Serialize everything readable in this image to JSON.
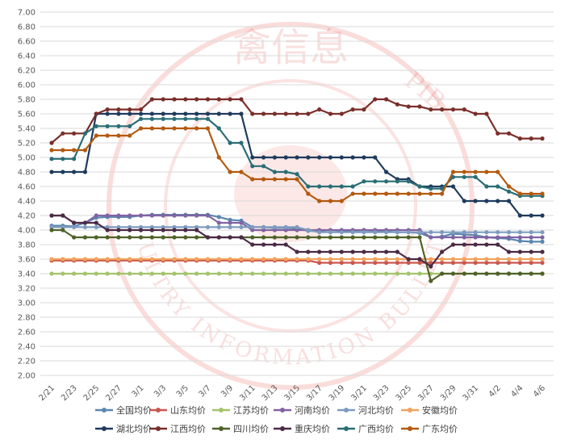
{
  "chart_data": {
    "type": "line",
    "title": "",
    "xlabel": "",
    "ylabel": "",
    "ylim": [
      2.0,
      7.0
    ],
    "ytick_labels": [
      "2.00",
      "2.20",
      "2.40",
      "2.60",
      "2.80",
      "3.00",
      "3.20",
      "3.40",
      "3.60",
      "3.80",
      "4.00",
      "4.20",
      "4.40",
      "4.60",
      "4.80",
      "5.00",
      "5.20",
      "5.40",
      "5.60",
      "5.80",
      "6.00",
      "6.20",
      "6.40",
      "6.60",
      "6.80",
      "7.00"
    ],
    "x": [
      "2/21",
      "2/22",
      "2/23",
      "2/24",
      "2/25",
      "2/26",
      "2/27",
      "2/28",
      "3/1",
      "3/2",
      "3/3",
      "3/4",
      "3/5",
      "3/6",
      "3/7",
      "3/8",
      "3/9",
      "3/10",
      "3/11",
      "3/12",
      "3/13",
      "3/14",
      "3/15",
      "3/16",
      "3/17",
      "3/18",
      "3/19",
      "3/20",
      "3/21",
      "3/22",
      "3/23",
      "3/24",
      "3/25",
      "3/26",
      "3/27",
      "3/28",
      "3/29",
      "3/30",
      "3/31",
      "4/1",
      "4/2",
      "4/3",
      "4/4",
      "4/5",
      "4/6"
    ],
    "xtick_labels": [
      "2/21",
      "2/23",
      "2/25",
      "2/27",
      "3/1",
      "3/3",
      "3/5",
      "3/7",
      "3/9",
      "3/11",
      "3/13",
      "3/15",
      "3/17",
      "3/19",
      "3/21",
      "3/23",
      "3/25",
      "3/27",
      "3/29",
      "3/31",
      "4/2",
      "4/4",
      "4/6"
    ],
    "grid": true,
    "legend_position": "bottom",
    "watermark": {
      "top_text": "禽信息",
      "bottom_text": "POULTRY INFORMATION BULLETIN",
      "side_text": "PIB"
    },
    "series": [
      {
        "name": "全国均价",
        "color": "#5b87b0",
        "values": [
          4.06,
          4.06,
          4.05,
          4.1,
          4.17,
          4.18,
          4.18,
          4.18,
          4.2,
          4.21,
          4.21,
          4.21,
          4.21,
          4.21,
          4.21,
          4.18,
          4.14,
          4.13,
          4.04,
          4.04,
          4.03,
          4.03,
          4.02,
          3.99,
          3.98,
          3.97,
          3.98,
          3.99,
          4.0,
          3.99,
          3.98,
          3.97,
          3.97,
          3.96,
          3.9,
          3.91,
          3.95,
          3.94,
          3.93,
          3.9,
          3.89,
          3.88,
          3.85,
          3.84,
          3.84
        ]
      },
      {
        "name": "山东均价",
        "color": "#c9574e",
        "values": [
          3.58,
          3.58,
          3.58,
          3.58,
          3.58,
          3.58,
          3.58,
          3.58,
          3.58,
          3.58,
          3.58,
          3.58,
          3.58,
          3.58,
          3.58,
          3.58,
          3.58,
          3.58,
          3.58,
          3.58,
          3.58,
          3.58,
          3.58,
          3.58,
          3.55,
          3.55,
          3.55,
          3.55,
          3.55,
          3.55,
          3.55,
          3.55,
          3.55,
          3.55,
          3.55,
          3.55,
          3.55,
          3.55,
          3.55,
          3.55,
          3.55,
          3.55,
          3.55,
          3.55,
          3.55
        ]
      },
      {
        "name": "江苏均价",
        "color": "#a3c46c",
        "values": [
          3.4,
          3.4,
          3.4,
          3.4,
          3.4,
          3.4,
          3.4,
          3.4,
          3.4,
          3.4,
          3.4,
          3.4,
          3.4,
          3.4,
          3.4,
          3.4,
          3.4,
          3.4,
          3.4,
          3.4,
          3.4,
          3.4,
          3.4,
          3.4,
          3.4,
          3.4,
          3.4,
          3.4,
          3.4,
          3.4,
          3.4,
          3.4,
          3.4,
          3.4,
          3.4,
          3.4,
          3.4,
          3.4,
          3.4,
          3.4,
          3.4,
          3.4,
          3.4,
          3.4,
          3.4
        ]
      },
      {
        "name": "河南均价",
        "color": "#8064a2",
        "values": [
          4.2,
          4.2,
          4.1,
          4.1,
          4.2,
          4.2,
          4.2,
          4.2,
          4.2,
          4.2,
          4.2,
          4.2,
          4.2,
          4.2,
          4.2,
          4.1,
          4.1,
          4.1,
          4.0,
          4.0,
          4.0,
          4.0,
          4.0,
          4.0,
          4.0,
          4.0,
          4.0,
          4.0,
          4.0,
          4.0,
          4.0,
          4.0,
          4.0,
          4.0,
          3.9,
          3.9,
          3.9,
          3.9,
          3.9,
          3.9,
          3.9,
          3.9,
          3.9,
          3.9,
          3.9
        ]
      },
      {
        "name": "河北均价",
        "color": "#7f9cbf",
        "values": [
          4.04,
          4.04,
          4.04,
          4.04,
          4.04,
          4.04,
          4.04,
          4.04,
          4.04,
          4.04,
          4.04,
          4.04,
          4.04,
          4.04,
          4.04,
          4.04,
          4.04,
          4.04,
          4.04,
          4.04,
          4.04,
          4.04,
          4.04,
          4.0,
          3.97,
          3.97,
          3.97,
          3.97,
          3.97,
          3.97,
          3.97,
          3.97,
          3.97,
          3.97,
          3.97,
          3.97,
          3.97,
          3.97,
          3.97,
          3.97,
          3.97,
          3.97,
          3.97,
          3.97,
          3.97
        ]
      },
      {
        "name": "安徽均价",
        "color": "#f0a35e",
        "values": [
          3.6,
          3.6,
          3.6,
          3.6,
          3.6,
          3.6,
          3.6,
          3.6,
          3.6,
          3.6,
          3.6,
          3.6,
          3.6,
          3.6,
          3.6,
          3.6,
          3.6,
          3.6,
          3.6,
          3.6,
          3.6,
          3.6,
          3.6,
          3.6,
          3.6,
          3.6,
          3.6,
          3.6,
          3.6,
          3.6,
          3.6,
          3.6,
          3.6,
          3.6,
          3.6,
          3.6,
          3.6,
          3.6,
          3.6,
          3.6,
          3.6,
          3.6,
          3.6,
          3.6,
          3.6
        ]
      },
      {
        "name": "湖北均价",
        "color": "#1f3b5c",
        "values": [
          4.8,
          4.8,
          4.8,
          4.8,
          5.6,
          5.6,
          5.6,
          5.6,
          5.6,
          5.6,
          5.6,
          5.6,
          5.6,
          5.6,
          5.6,
          5.6,
          5.6,
          5.6,
          5.0,
          5.0,
          5.0,
          5.0,
          5.0,
          5.0,
          5.0,
          5.0,
          5.0,
          5.0,
          5.0,
          5.0,
          4.8,
          4.7,
          4.7,
          4.6,
          4.6,
          4.6,
          4.6,
          4.4,
          4.4,
          4.4,
          4.4,
          4.4,
          4.2,
          4.2,
          4.2
        ]
      },
      {
        "name": "江西均价",
        "color": "#7a2e2a",
        "values": [
          5.2,
          5.33,
          5.33,
          5.33,
          5.6,
          5.66,
          5.66,
          5.66,
          5.66,
          5.8,
          5.8,
          5.8,
          5.8,
          5.8,
          5.8,
          5.8,
          5.8,
          5.8,
          5.6,
          5.6,
          5.6,
          5.6,
          5.6,
          5.6,
          5.66,
          5.6,
          5.6,
          5.66,
          5.66,
          5.8,
          5.8,
          5.73,
          5.7,
          5.7,
          5.66,
          5.66,
          5.66,
          5.66,
          5.6,
          5.6,
          5.33,
          5.33,
          5.26,
          5.26,
          5.26
        ]
      },
      {
        "name": "四川均价",
        "color": "#4f6228",
        "values": [
          4.0,
          4.0,
          3.9,
          3.9,
          3.9,
          3.9,
          3.9,
          3.9,
          3.9,
          3.9,
          3.9,
          3.9,
          3.9,
          3.9,
          3.9,
          3.9,
          3.9,
          3.9,
          3.9,
          3.9,
          3.9,
          3.9,
          3.9,
          3.9,
          3.9,
          3.9,
          3.9,
          3.9,
          3.9,
          3.9,
          3.9,
          3.9,
          3.9,
          3.9,
          3.3,
          3.4,
          3.4,
          3.4,
          3.4,
          3.4,
          3.4,
          3.4,
          3.4,
          3.4,
          3.4
        ]
      },
      {
        "name": "重庆均价",
        "color": "#4b2a45",
        "values": [
          4.2,
          4.2,
          4.1,
          4.1,
          4.1,
          4.0,
          4.0,
          4.0,
          4.0,
          4.0,
          4.0,
          4.0,
          4.0,
          4.0,
          3.9,
          3.9,
          3.9,
          3.9,
          3.8,
          3.8,
          3.8,
          3.8,
          3.7,
          3.7,
          3.7,
          3.7,
          3.7,
          3.7,
          3.7,
          3.7,
          3.7,
          3.7,
          3.6,
          3.6,
          3.5,
          3.7,
          3.8,
          3.8,
          3.8,
          3.8,
          3.8,
          3.7,
          3.7,
          3.7,
          3.7
        ]
      },
      {
        "name": "广西均价",
        "color": "#2a6e75",
        "values": [
          4.98,
          4.98,
          4.98,
          5.33,
          5.43,
          5.43,
          5.43,
          5.43,
          5.53,
          5.53,
          5.53,
          5.53,
          5.53,
          5.53,
          5.53,
          5.4,
          5.2,
          5.2,
          4.88,
          4.88,
          4.8,
          4.8,
          4.77,
          4.6,
          4.6,
          4.6,
          4.6,
          4.6,
          4.67,
          4.67,
          4.67,
          4.67,
          4.67,
          4.6,
          4.57,
          4.57,
          4.73,
          4.73,
          4.73,
          4.6,
          4.6,
          4.53,
          4.47,
          4.47,
          4.47
        ]
      },
      {
        "name": "广东均价",
        "color": "#b35a0f",
        "values": [
          5.1,
          5.1,
          5.1,
          5.1,
          5.3,
          5.3,
          5.3,
          5.3,
          5.4,
          5.4,
          5.4,
          5.4,
          5.4,
          5.4,
          5.4,
          5.0,
          4.8,
          4.8,
          4.7,
          4.7,
          4.7,
          4.7,
          4.7,
          4.5,
          4.4,
          4.4,
          4.4,
          4.5,
          4.5,
          4.5,
          4.5,
          4.5,
          4.5,
          4.5,
          4.5,
          4.5,
          4.8,
          4.8,
          4.8,
          4.8,
          4.8,
          4.6,
          4.5,
          4.5,
          4.5
        ]
      }
    ]
  }
}
